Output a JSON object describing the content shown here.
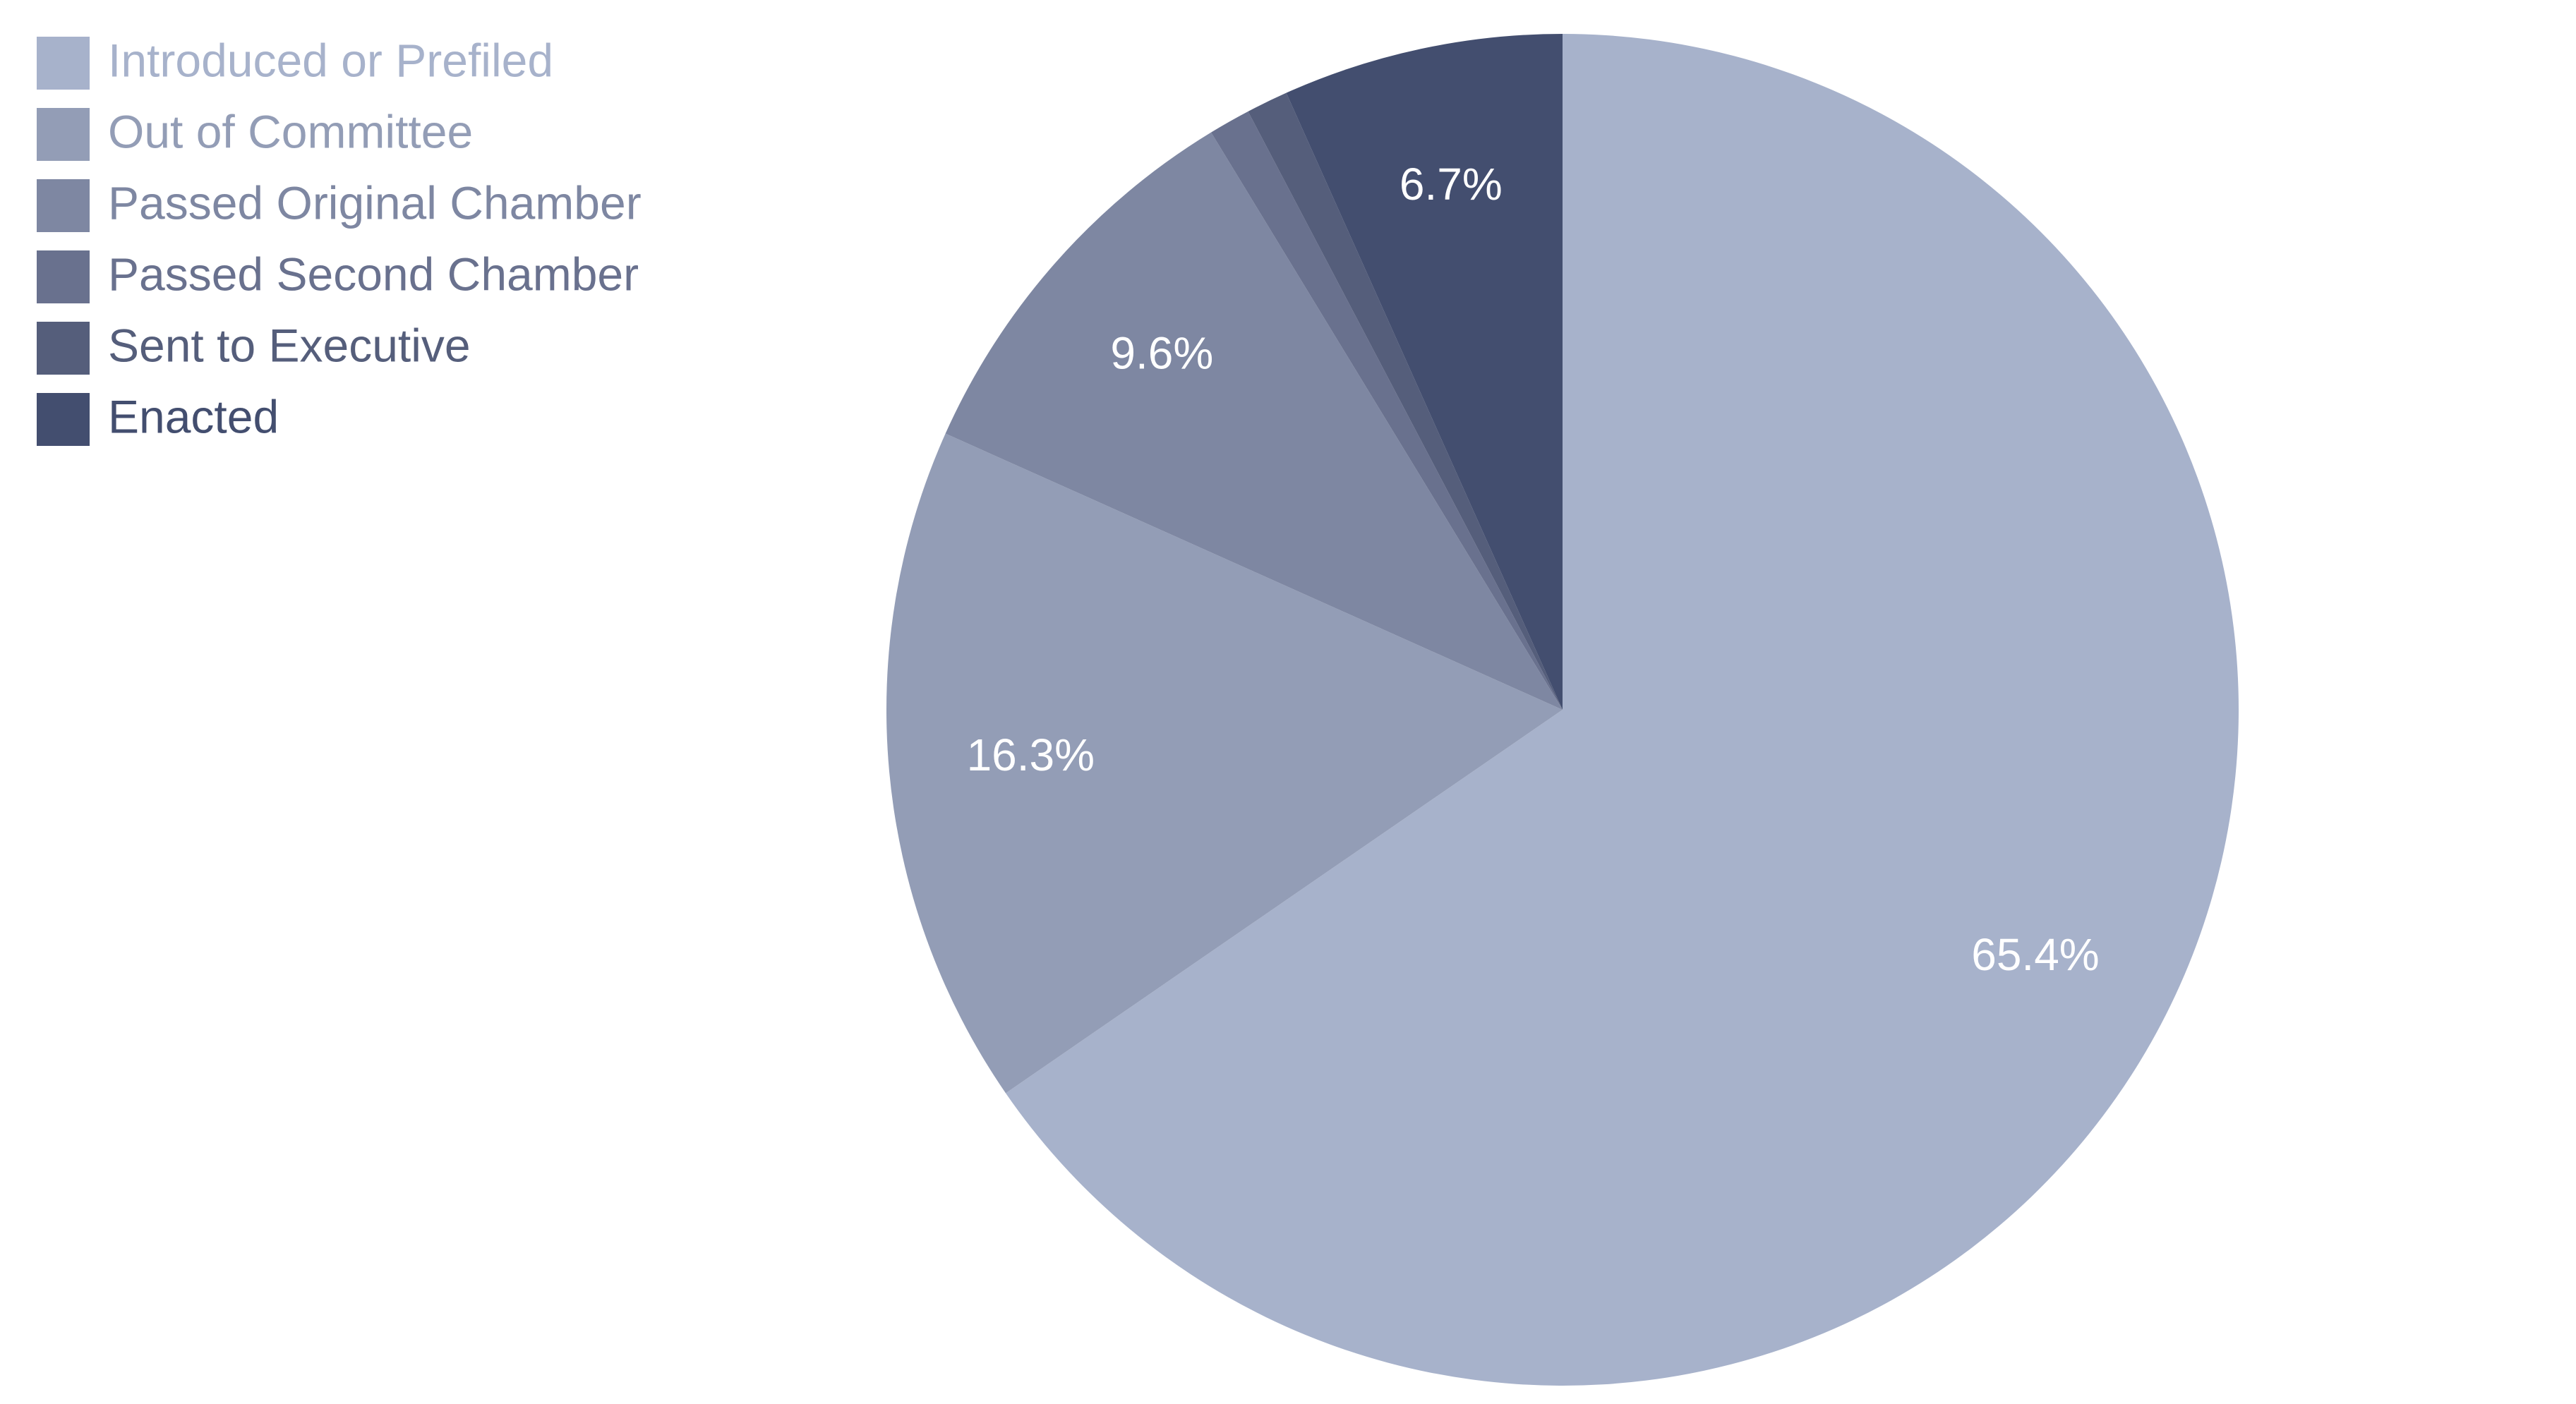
{
  "chart_data": {
    "type": "pie",
    "categories": [
      "Introduced or Prefiled",
      "Out of Committee",
      "Passed Original Chamber",
      "Passed Second Chamber",
      "Sent to Executive",
      "Enacted"
    ],
    "values": [
      65.4,
      16.3,
      9.6,
      1.0,
      1.0,
      6.7
    ],
    "value_labels": [
      "65.4%",
      "16.3%",
      "9.6%",
      null,
      null,
      "6.7%"
    ],
    "colors": [
      "#a7b2cb",
      "#939db6",
      "#7e87a2",
      "#69718e",
      "#555e7b",
      "#434e6f"
    ],
    "legend": "top-left"
  }
}
